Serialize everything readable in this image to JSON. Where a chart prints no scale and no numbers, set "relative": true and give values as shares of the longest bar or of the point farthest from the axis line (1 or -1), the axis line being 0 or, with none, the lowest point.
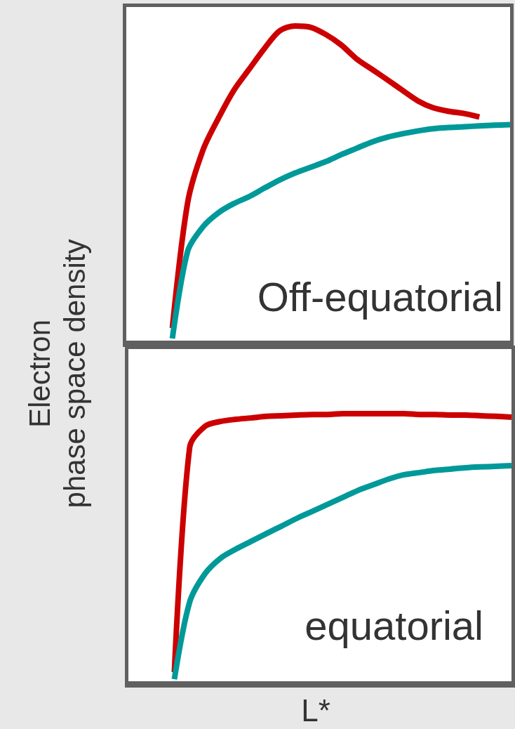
{
  "chart_data": [
    {
      "type": "line",
      "relative": true,
      "ylabel": "Electron\nphase space density",
      "marker": "none",
      "categories": [
        null,
        null,
        null,
        null,
        null,
        null,
        null,
        null,
        null,
        null,
        null,
        null,
        null,
        null,
        null,
        null,
        null,
        null,
        null,
        null,
        null,
        null,
        null,
        null,
        null,
        null
      ],
      "series": [
        {
          "color": "#cc0000",
          "values": [
            null,
            null,
            null,
            0.044,
            0.442,
            0.608,
            0.708,
            0.796,
            0.863,
            0.929,
            0.985,
            1,
            0.996,
            0.973,
            0.94,
            0.896,
            0.863,
            0.83,
            0.796,
            0.763,
            0.741,
            0.73,
            0.723,
            0.712,
            null,
            null
          ]
        },
        {
          "color": "#009999",
          "values": [
            null,
            null,
            null,
            0.011,
            0.288,
            0.365,
            0.409,
            0.438,
            0.46,
            0.487,
            0.513,
            0.535,
            0.553,
            0.571,
            0.593,
            0.613,
            0.633,
            0.648,
            0.659,
            0.668,
            0.675,
            0.679,
            0.681,
            0.684,
            0.686,
            0.688
          ]
        }
      ],
      "annotations": [
        "Off-equatorial"
      ]
    },
    {
      "type": "line",
      "relative": true,
      "xlabel": "L*",
      "marker": "none",
      "categories": [
        null,
        null,
        null,
        null,
        null,
        null,
        null,
        null,
        null,
        null,
        null,
        null,
        null,
        null,
        null,
        null,
        null,
        null,
        null,
        null,
        null,
        null,
        null,
        null,
        null,
        null
      ],
      "series": [
        {
          "color": "#cc0000",
          "values": [
            null,
            null,
            null,
            0.039,
            0.875,
            0.953,
            0.971,
            0.979,
            0.984,
            0.99,
            0.992,
            0.995,
            0.997,
            0.997,
            1,
            1,
            1,
            1,
            1,
            0.997,
            0.997,
            0.995,
            0.995,
            0.992,
            0.99,
            0.987
          ]
        },
        {
          "color": "#009999",
          "values": [
            null,
            null,
            null,
            0.013,
            0.3,
            0.405,
            0.462,
            0.496,
            0.525,
            0.554,
            0.582,
            0.611,
            0.637,
            0.663,
            0.689,
            0.715,
            0.736,
            0.757,
            0.773,
            0.781,
            0.789,
            0.794,
            0.799,
            0.802,
            0.804,
            0.807
          ]
        }
      ],
      "annotations": [
        "equatorial"
      ]
    }
  ]
}
